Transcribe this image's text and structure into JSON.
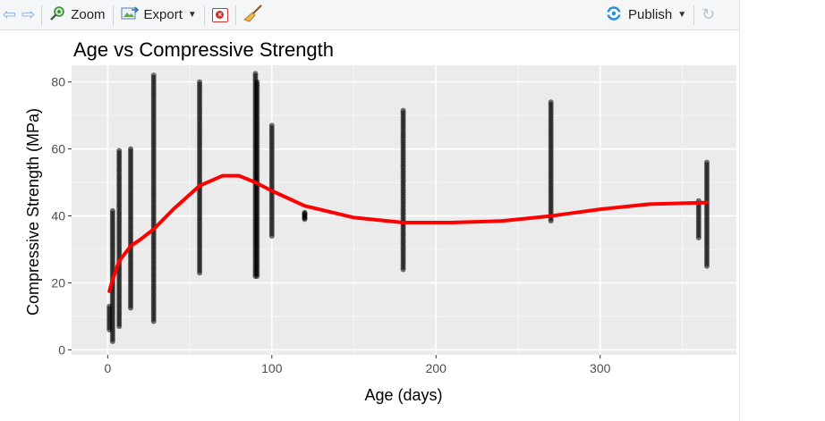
{
  "toolbar": {
    "back_icon": "arrow-left-icon",
    "forward_icon": "arrow-right-icon",
    "zoom_label": "Zoom",
    "export_label": "Export",
    "clear_icon": "remove-plot-icon",
    "broom_icon": "broom-icon",
    "publish_label": "Publish",
    "refresh_icon": "refresh-icon"
  },
  "colors": {
    "panel_bg": "#ebebeb",
    "grid": "#ffffff",
    "points": "#000000",
    "smooth_line": "#ff0000"
  },
  "chart_data": {
    "type": "scatter",
    "title": "Age vs Compressive Strength",
    "xlabel": "Age (days)",
    "ylabel": "Compressive Strength (MPa)",
    "xlim": [
      -22,
      383
    ],
    "ylim": [
      -1.5,
      85
    ],
    "xticks": [
      "0",
      "100",
      "200",
      "300"
    ],
    "yticks": [
      "0",
      "20",
      "40",
      "60",
      "80"
    ],
    "grid": true,
    "point_columns": [
      {
        "x": 1,
        "ymin": 6,
        "ymax": 13
      },
      {
        "x": 3,
        "ymin": 2.5,
        "ymax": 41.5
      },
      {
        "x": 7,
        "ymin": 7,
        "ymax": 59.5
      },
      {
        "x": 14,
        "ymin": 12.5,
        "ymax": 60
      },
      {
        "x": 28,
        "ymin": 8.5,
        "ymax": 82
      },
      {
        "x": 56,
        "ymin": 23,
        "ymax": 80
      },
      {
        "x": 90,
        "ymin": 22,
        "ymax": 82.5
      },
      {
        "x": 91,
        "ymin": 22,
        "ymax": 80
      },
      {
        "x": 100,
        "ymin": 34,
        "ymax": 67
      },
      {
        "x": 120,
        "ymin": 39,
        "ymax": 41
      },
      {
        "x": 180,
        "ymin": 24,
        "ymax": 71.5
      },
      {
        "x": 270,
        "ymin": 38.5,
        "ymax": 74
      },
      {
        "x": 360,
        "ymin": 33.5,
        "ymax": 44.5
      },
      {
        "x": 365,
        "ymin": 25,
        "ymax": 56
      }
    ],
    "smooth_line": {
      "x": [
        1,
        3,
        7,
        14,
        20,
        28,
        40,
        56,
        70,
        80,
        90,
        100,
        120,
        150,
        180,
        210,
        240,
        270,
        300,
        330,
        365
      ],
      "y": [
        17.5,
        21,
        26.5,
        31,
        33,
        36,
        42,
        49,
        52,
        52,
        50,
        47.5,
        43,
        39.5,
        38,
        38,
        38.5,
        40,
        42,
        43.5,
        44
      ]
    }
  }
}
